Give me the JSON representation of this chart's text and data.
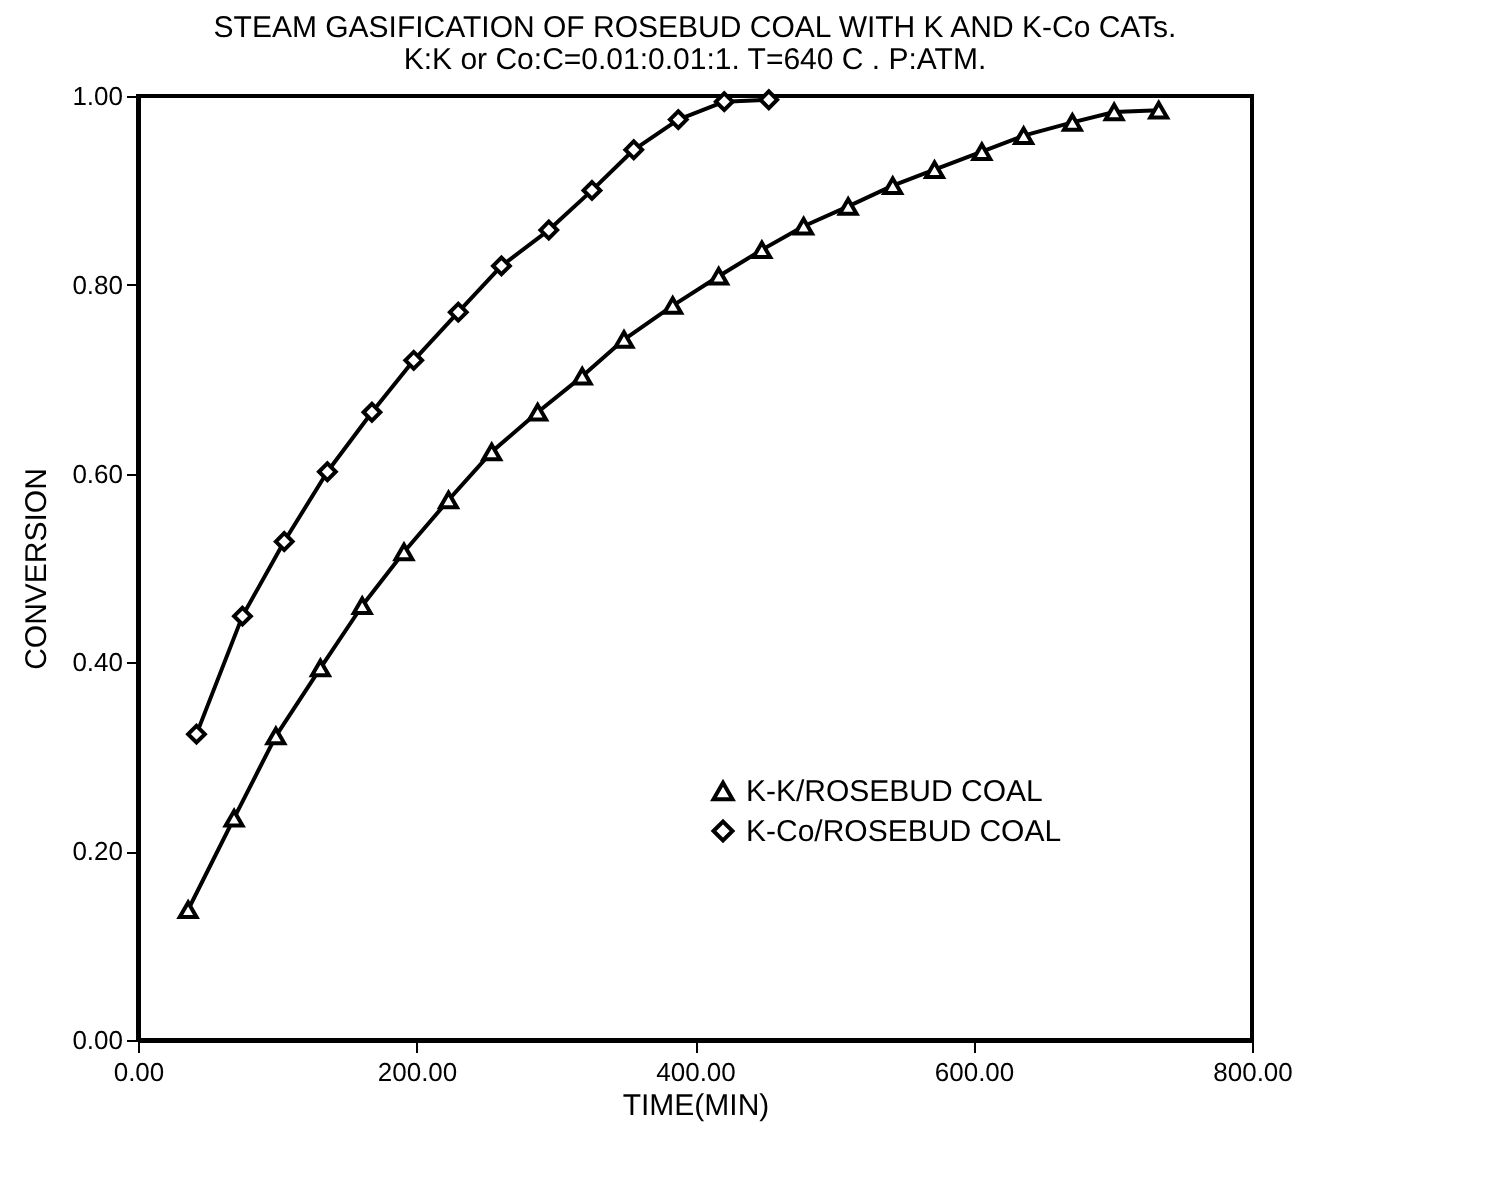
{
  "chart_data": {
    "type": "line",
    "title": "STEAM GASIFICATION OF ROSEBUD COAL WITH K AND K-Co CATs.",
    "subtitle": "K:K or Co:C=0.01:0.01:1. T=640 C . P:ATM.",
    "xlabel": "TIME(MIN)",
    "ylabel": "CONVERSION",
    "xlim": [
      0,
      800
    ],
    "xticks": [
      {
        "value": 0,
        "label": "0.00"
      },
      {
        "value": 200,
        "label": "200.00"
      },
      {
        "value": 400,
        "label": "400.00"
      },
      {
        "value": 600,
        "label": "600.00"
      },
      {
        "value": 800,
        "label": "800.00"
      }
    ],
    "ylim": [
      0,
      1
    ],
    "yticks": [
      {
        "value": 0,
        "label": "0.00"
      },
      {
        "value": 0.2,
        "label": "0.20"
      },
      {
        "value": 0.4,
        "label": "0.40"
      },
      {
        "value": 0.6,
        "label": "0.60"
      },
      {
        "value": 0.8,
        "label": "0.80"
      },
      {
        "value": 1,
        "label": "1.00"
      }
    ],
    "grid": false,
    "legend": "bottom right",
    "line_style": "solid",
    "series": [
      {
        "name": "K-K/ROSEBUD COAL",
        "color": "#000000",
        "marker": "triangle",
        "x": [
          36,
          69,
          99,
          131,
          161,
          191,
          223,
          254,
          287,
          319,
          349,
          384,
          417,
          448,
          478,
          510,
          542,
          572,
          606,
          636,
          671,
          701,
          733
        ],
        "values": [
          0.138,
          0.235,
          0.322,
          0.394,
          0.46,
          0.517,
          0.572,
          0.623,
          0.665,
          0.703,
          0.742,
          0.778,
          0.809,
          0.837,
          0.862,
          0.883,
          0.905,
          0.922,
          0.941,
          0.958,
          0.972,
          0.983,
          0.985
        ]
      },
      {
        "name": "K-Co/ROSEBUD COAL",
        "color": "#000000",
        "marker": "diamond",
        "x": [
          42,
          75,
          105,
          136,
          168,
          198,
          230,
          261,
          295,
          326,
          356,
          388,
          421,
          453
        ],
        "values": [
          0.324,
          0.449,
          0.528,
          0.602,
          0.665,
          0.72,
          0.771,
          0.82,
          0.858,
          0.9,
          0.943,
          0.975,
          0.994,
          0.996
        ]
      }
    ]
  }
}
